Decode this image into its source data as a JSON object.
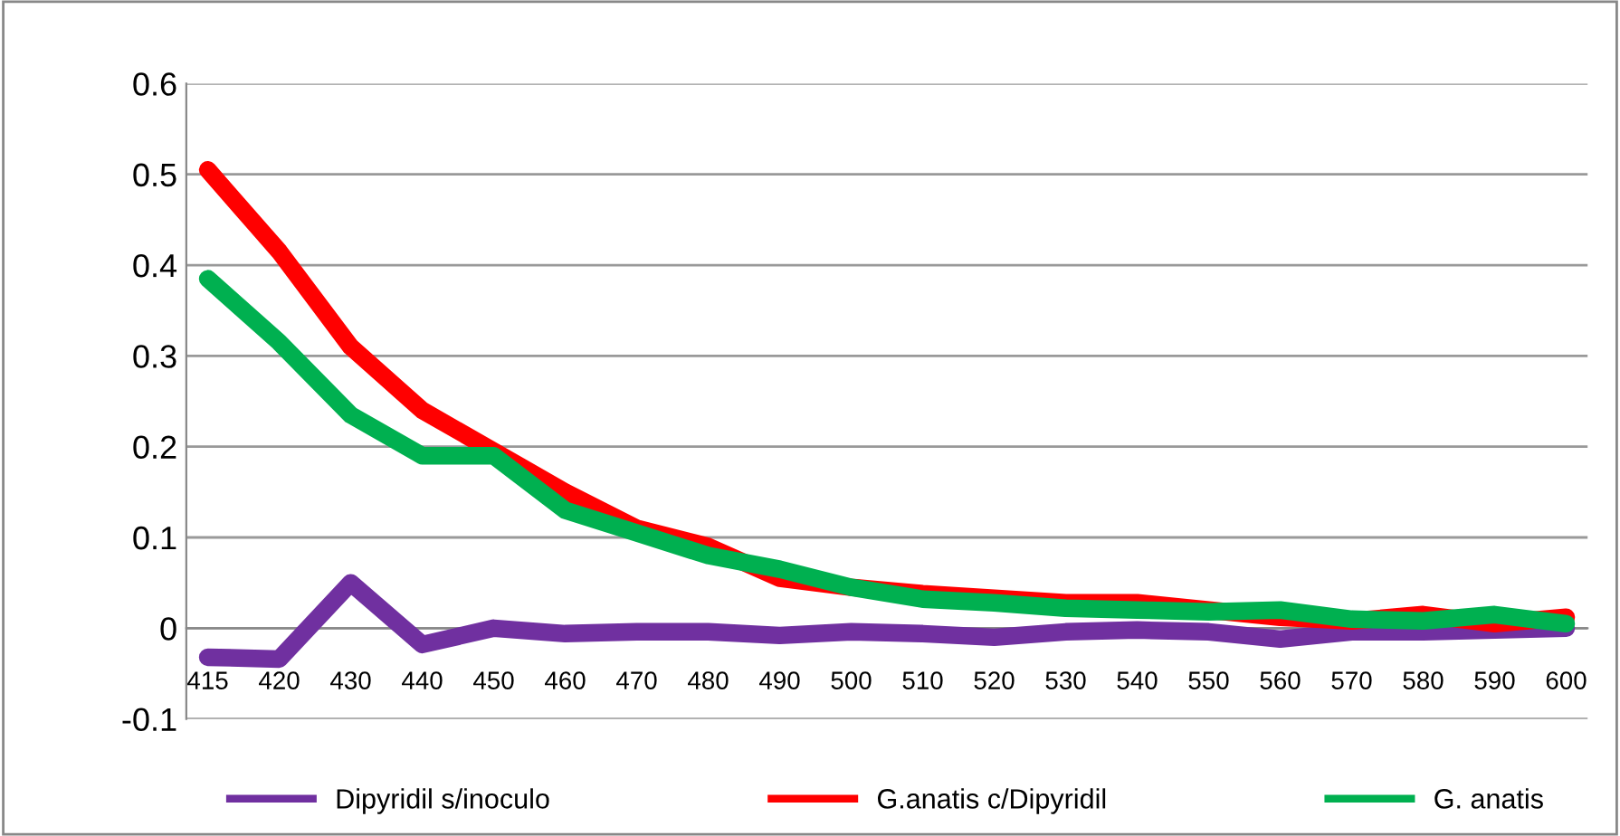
{
  "chart_data": {
    "type": "line",
    "categories": [
      "415",
      "420",
      "430",
      "440",
      "450",
      "460",
      "470",
      "480",
      "490",
      "500",
      "510",
      "520",
      "530",
      "540",
      "550",
      "560",
      "570",
      "580",
      "590",
      "600"
    ],
    "series": [
      {
        "name": "Dipyridil s/inoculo",
        "color": "#7030a0",
        "values": [
          -0.032,
          -0.034,
          0.05,
          -0.018,
          0.0,
          -0.006,
          -0.004,
          -0.004,
          -0.008,
          -0.004,
          -0.006,
          -0.01,
          -0.004,
          -0.002,
          -0.004,
          -0.012,
          -0.004,
          -0.004,
          -0.002,
          0.0
        ]
      },
      {
        "name": "G.anatis c/Dipyridil",
        "color": "#ff0000",
        "values": [
          0.505,
          0.415,
          0.31,
          0.24,
          0.195,
          0.15,
          0.11,
          0.09,
          0.055,
          0.045,
          0.038,
          0.033,
          0.028,
          0.028,
          0.02,
          0.012,
          0.008,
          0.015,
          0.005,
          0.012
        ]
      },
      {
        "name": "G. anatis",
        "color": "#00b050",
        "values": [
          0.385,
          0.315,
          0.235,
          0.19,
          0.19,
          0.13,
          0.105,
          0.08,
          0.065,
          0.045,
          0.032,
          0.028,
          0.022,
          0.02,
          0.018,
          0.02,
          0.01,
          0.008,
          0.015,
          0.005
        ]
      }
    ],
    "ylim": [
      -0.1,
      0.6
    ],
    "yticks": [
      -0.1,
      0,
      0.1,
      0.2,
      0.3,
      0.4,
      0.5,
      0.6
    ],
    "grid": "y",
    "legend": "bottom",
    "marker": "none",
    "line_style": "solid"
  }
}
